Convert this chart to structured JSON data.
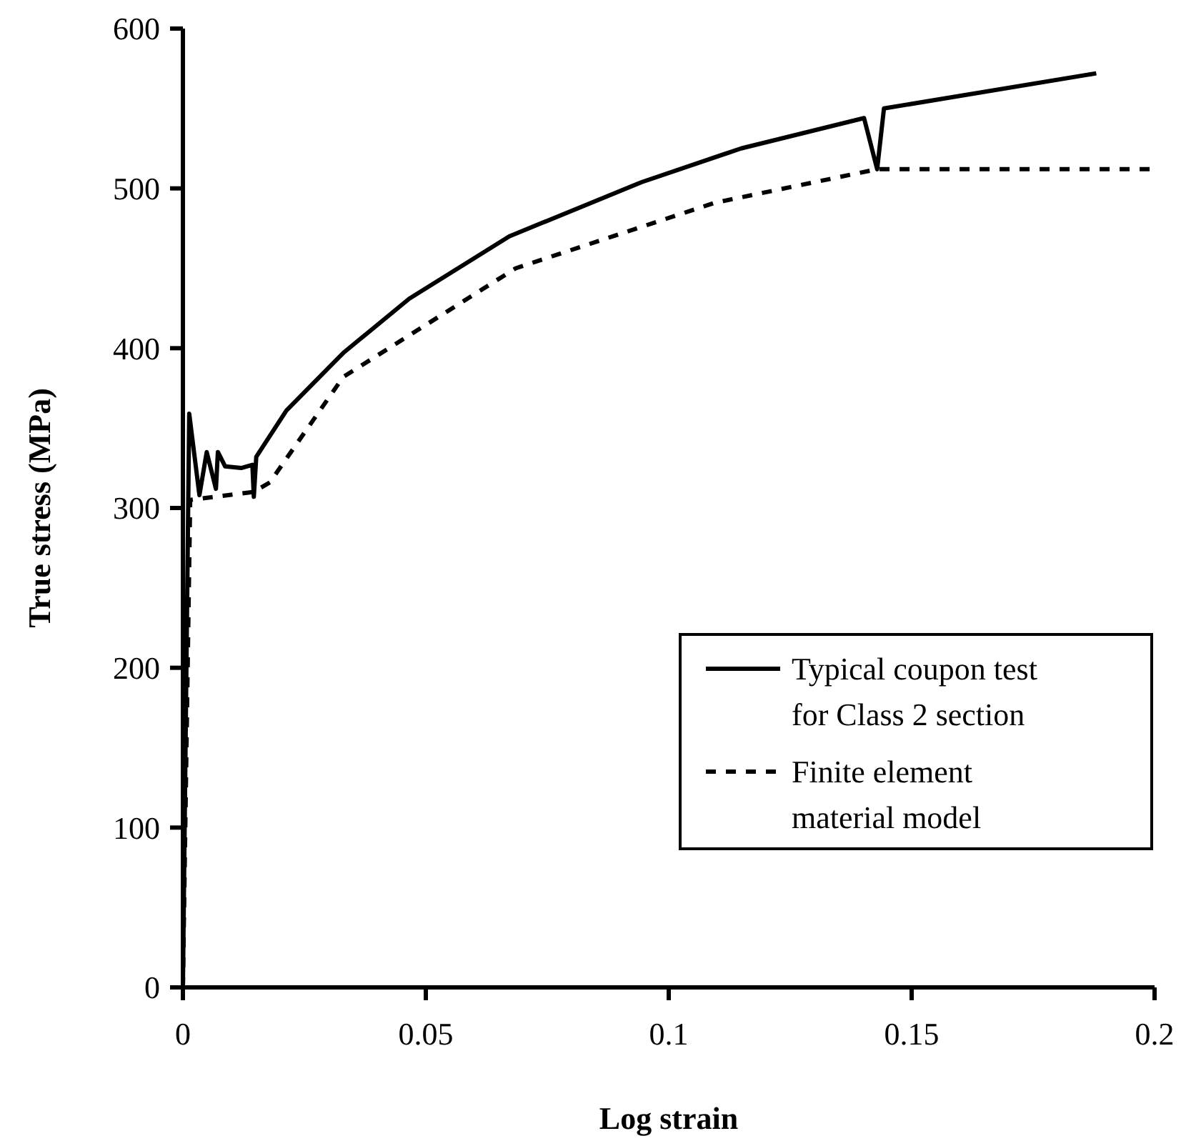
{
  "chart_data": {
    "type": "line",
    "xlabel": "Log strain",
    "ylabel": "True stress (MPa)",
    "xlim": [
      0,
      0.2
    ],
    "xticks": [
      0,
      0.05,
      0.1,
      0.15,
      0.2
    ],
    "ylim": [
      0,
      600
    ],
    "yticks": [
      0,
      100,
      200,
      300,
      400,
      500,
      600
    ],
    "grid": false,
    "legend": "right",
    "series": [
      {
        "name": "Typical coupon test for Class 2 section",
        "color": "#000000",
        "line_style": "solid",
        "x": [
          0,
          0.0013,
          0.0034,
          0.0049,
          0.0068,
          0.0072,
          0.0087,
          0.012,
          0.0143,
          0.0146,
          0.0151,
          0.0213,
          0.033,
          0.0466,
          0.0672,
          0.0945,
          0.1149,
          0.1402,
          0.1429,
          0.1443,
          0.188
        ],
        "values": [
          0,
          359,
          308,
          335,
          312,
          335,
          326,
          325,
          327,
          307,
          332,
          361,
          397,
          431,
          470,
          504,
          525,
          544,
          512,
          550,
          572
        ]
      },
      {
        "name": "Finite element material model",
        "color": "#000000",
        "line_style": "dashed",
        "x": [
          0,
          0.0015,
          0.0145,
          0.0179,
          0.033,
          0.0685,
          0.1095,
          0.1429,
          0.2
        ],
        "values": [
          0,
          305,
          310,
          316,
          382,
          450,
          491,
          512,
          512
        ]
      }
    ]
  }
}
